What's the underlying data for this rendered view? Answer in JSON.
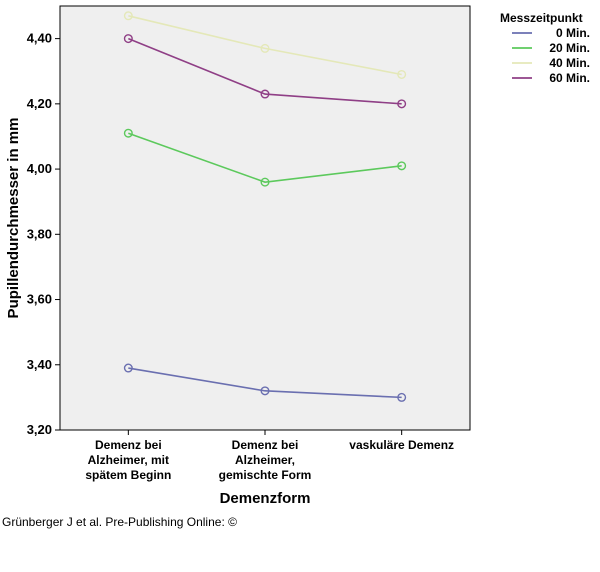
{
  "chart_data": {
    "type": "line",
    "ylabel": "Pupillendurchmesser in mm",
    "xlabel": "Demenzform",
    "ylim": [
      3.2,
      4.5
    ],
    "yticks": [
      "3,20",
      "3,40",
      "3,60",
      "3,80",
      "4,00",
      "4,20",
      "4,40"
    ],
    "ytick_values": [
      3.2,
      3.4,
      3.6,
      3.8,
      4.0,
      4.2,
      4.4
    ],
    "categories": [
      [
        "Demenz bei",
        "Alzheimer, mit",
        "spätem Beginn"
      ],
      [
        "Demenz bei",
        "Alzheimer,",
        "gemischte Form"
      ],
      [
        "vaskuläre Demenz"
      ]
    ],
    "legend_title": "Messzeitpunkt",
    "legend_position": "top-right",
    "series": [
      {
        "name": "0 Min.",
        "color": "#6a6fb0",
        "values": [
          3.39,
          3.32,
          3.3
        ]
      },
      {
        "name": "20 Min.",
        "color": "#5cc95c",
        "values": [
          4.11,
          3.96,
          4.01
        ]
      },
      {
        "name": "40 Min.",
        "color": "#e4e8b8",
        "values": [
          4.47,
          4.37,
          4.29
        ]
      },
      {
        "name": "60 Min.",
        "color": "#8f3f86",
        "values": [
          4.4,
          4.23,
          4.2
        ]
      }
    ],
    "plot_background": "#efefef"
  },
  "caption": "Grünberger J et al. Pre-Publishing Online: ©"
}
